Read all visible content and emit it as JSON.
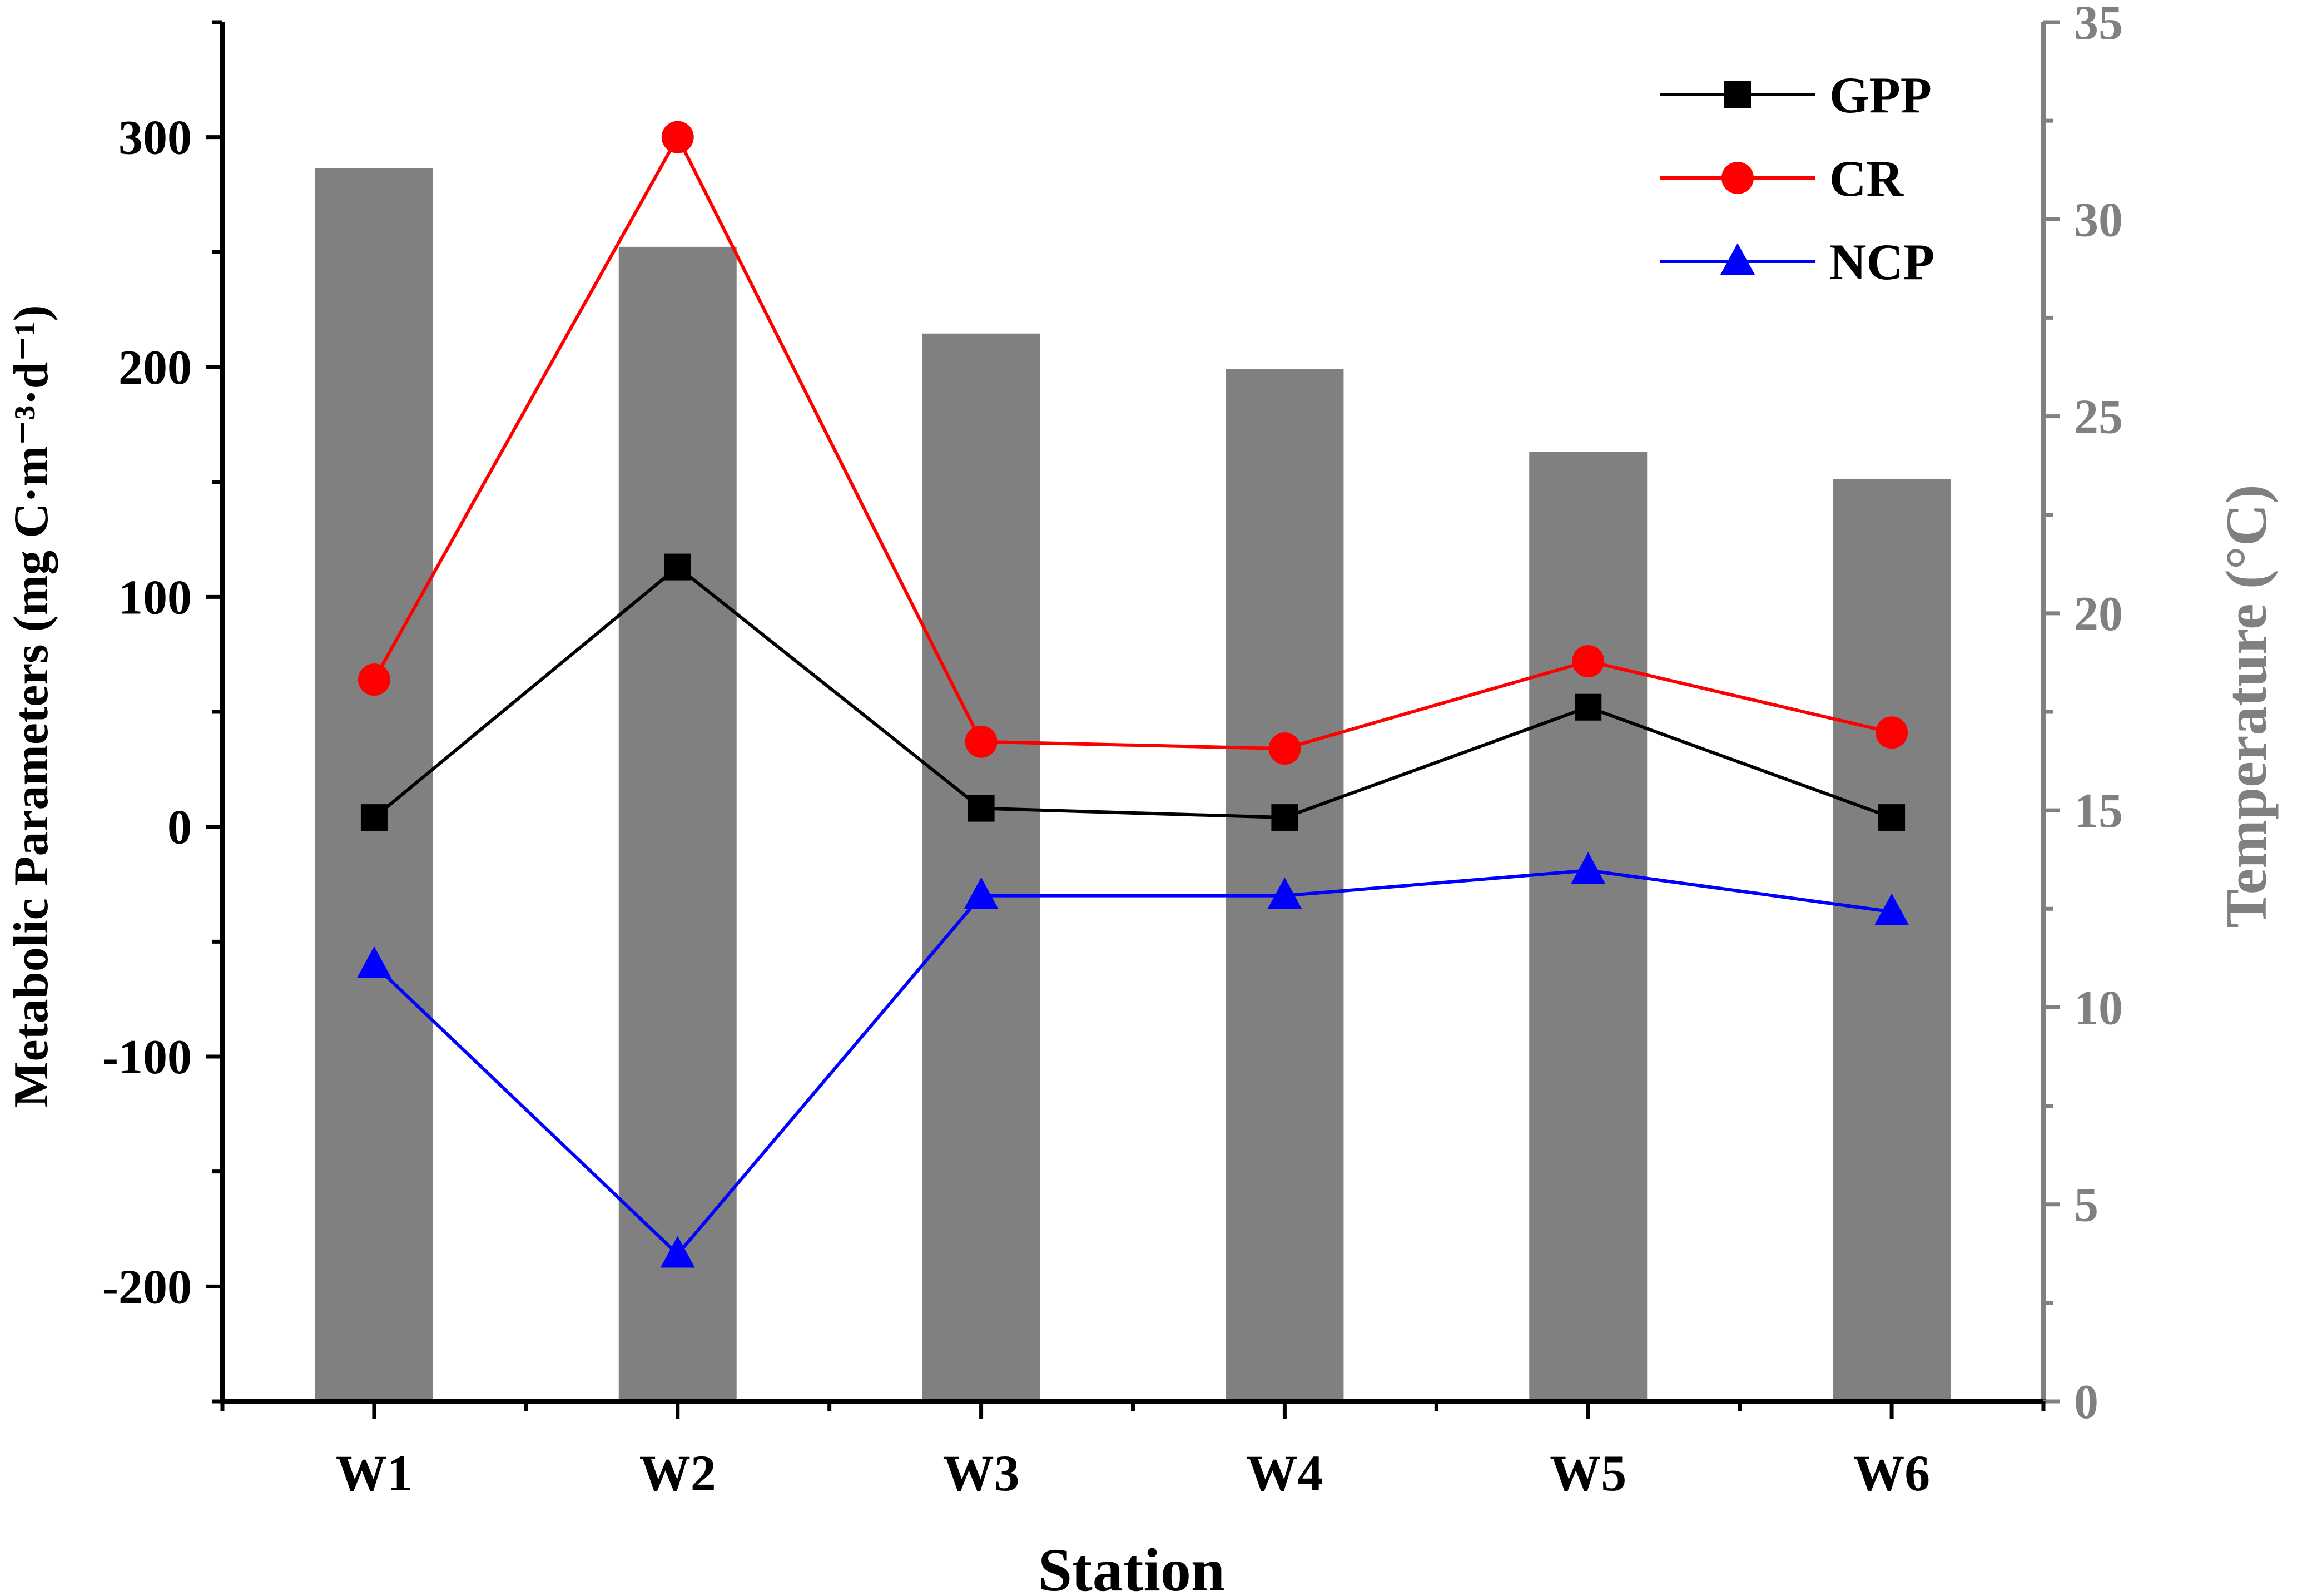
{
  "chart_data": {
    "type": "bar+line",
    "categories": [
      "W1",
      "W2",
      "W3",
      "W4",
      "W5",
      "W6"
    ],
    "xlabel": "Station",
    "ylabel_left": "Metabolic Parameters (mg C·m⁻³·d⁻¹)",
    "ylabel_right": "Temperature (°C)",
    "ylim_left": [
      -250,
      350
    ],
    "ylim_right": [
      0,
      35
    ],
    "yticks_left": [
      -200,
      -100,
      0,
      100,
      200,
      300
    ],
    "yticks_right": [
      0,
      5,
      10,
      15,
      20,
      25,
      30,
      35
    ],
    "bars": {
      "name": "Temperature",
      "axis": "right",
      "color": "#808080",
      "values": [
        31.3,
        29.3,
        27.1,
        26.2,
        24.1,
        23.4
      ]
    },
    "series": [
      {
        "name": "GPP",
        "axis": "left",
        "color": "#000000",
        "marker": "square",
        "values": [
          4,
          113,
          8,
          4,
          52,
          4
        ]
      },
      {
        "name": "CR",
        "axis": "left",
        "color": "#ff0000",
        "marker": "circle",
        "values": [
          64,
          300,
          37,
          34,
          72,
          41
        ]
      },
      {
        "name": "NCP",
        "axis": "left",
        "color": "#0000ff",
        "marker": "triangle",
        "values": [
          -60,
          -186,
          -30,
          -30,
          -19,
          -37
        ]
      }
    ],
    "legend": "top-right",
    "axis_colors": {
      "left": "#000000",
      "right": "#808080"
    }
  }
}
